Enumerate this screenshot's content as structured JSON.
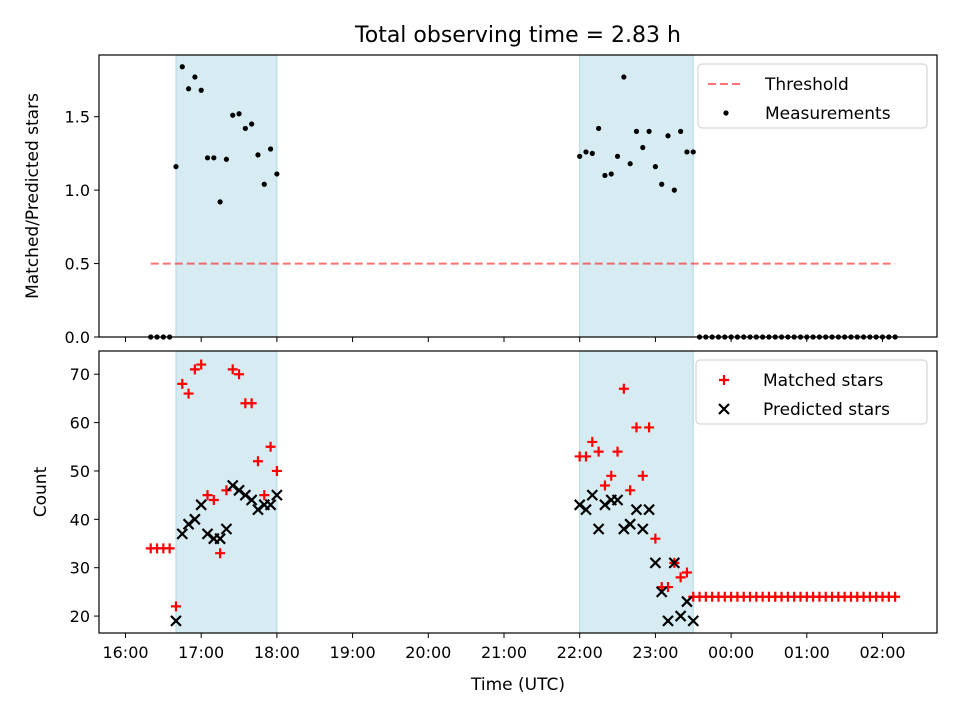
{
  "title": "Total observing time = 2.83 h",
  "xlabel": "Time (UTC)",
  "colors": {
    "shade": "#add8e6",
    "threshold": "#ff0000",
    "matched": "#ff0000",
    "predicted": "#000000",
    "measurement": "#000000"
  },
  "chart_data": [
    {
      "type": "scatter",
      "ylabel": "Matched/Predicted stars",
      "ylim": [
        0,
        1.92
      ],
      "xlim_hours": [
        15.65,
        26.72
      ],
      "yticks": [
        "0.0",
        "0.5",
        "1.0",
        "1.5"
      ],
      "yticks_values": [
        0,
        0.5,
        1.0,
        1.5
      ],
      "shaded_intervals": [
        [
          "16:40",
          "18:00"
        ],
        [
          "22:00",
          "23:30"
        ]
      ],
      "legend_position": "top-right",
      "legend": [
        "Threshold",
        "Measurements"
      ],
      "threshold": {
        "name": "Threshold",
        "y": 0.5,
        "x_start": "16:20",
        "x_end": "02:10"
      },
      "series": [
        {
          "name": "Measurements",
          "points": [
            [
              "16:20",
              0
            ],
            [
              "16:25",
              0
            ],
            [
              "16:30",
              0
            ],
            [
              "16:35",
              0
            ],
            [
              "16:40",
              1.16
            ],
            [
              "16:45",
              1.84
            ],
            [
              "16:50",
              1.69
            ],
            [
              "16:55",
              1.77
            ],
            [
              "17:00",
              1.68
            ],
            [
              "17:05",
              1.22
            ],
            [
              "17:10",
              1.22
            ],
            [
              "17:15",
              0.92
            ],
            [
              "17:20",
              1.21
            ],
            [
              "17:25",
              1.51
            ],
            [
              "17:30",
              1.52
            ],
            [
              "17:35",
              1.42
            ],
            [
              "17:40",
              1.45
            ],
            [
              "17:45",
              1.24
            ],
            [
              "17:50",
              1.04
            ],
            [
              "17:55",
              1.28
            ],
            [
              "18:00",
              1.11
            ],
            [
              "22:00",
              1.23
            ],
            [
              "22:05",
              1.26
            ],
            [
              "22:10",
              1.25
            ],
            [
              "22:15",
              1.42
            ],
            [
              "22:20",
              1.1
            ],
            [
              "22:25",
              1.11
            ],
            [
              "22:30",
              1.23
            ],
            [
              "22:35",
              1.77
            ],
            [
              "22:40",
              1.18
            ],
            [
              "22:45",
              1.4
            ],
            [
              "22:50",
              1.29
            ],
            [
              "22:55",
              1.4
            ],
            [
              "23:00",
              1.16
            ],
            [
              "23:05",
              1.04
            ],
            [
              "23:10",
              1.37
            ],
            [
              "23:15",
              1.0
            ],
            [
              "23:20",
              1.4
            ],
            [
              "23:25",
              1.26
            ],
            [
              "23:30",
              1.26
            ],
            [
              "23:35",
              0
            ],
            [
              "23:40",
              0
            ],
            [
              "23:45",
              0
            ],
            [
              "23:50",
              0
            ],
            [
              "23:55",
              0
            ],
            [
              "00:00",
              0
            ],
            [
              "00:05",
              0
            ],
            [
              "00:10",
              0
            ],
            [
              "00:15",
              0
            ],
            [
              "00:20",
              0
            ],
            [
              "00:25",
              0
            ],
            [
              "00:30",
              0
            ],
            [
              "00:35",
              0
            ],
            [
              "00:40",
              0
            ],
            [
              "00:45",
              0
            ],
            [
              "00:50",
              0
            ],
            [
              "00:55",
              0
            ],
            [
              "01:00",
              0
            ],
            [
              "01:05",
              0
            ],
            [
              "01:10",
              0
            ],
            [
              "01:15",
              0
            ],
            [
              "01:20",
              0
            ],
            [
              "01:25",
              0
            ],
            [
              "01:30",
              0
            ],
            [
              "01:35",
              0
            ],
            [
              "01:40",
              0
            ],
            [
              "01:45",
              0
            ],
            [
              "01:50",
              0
            ],
            [
              "01:55",
              0
            ],
            [
              "02:00",
              0
            ],
            [
              "02:05",
              0
            ],
            [
              "02:10",
              0
            ]
          ]
        }
      ]
    },
    {
      "type": "scatter",
      "ylabel": "Count",
      "xlabel": "Time (UTC)",
      "ylim": [
        16.5,
        74.8
      ],
      "xlim_hours": [
        15.65,
        26.72
      ],
      "yticks": [
        "20",
        "30",
        "40",
        "50",
        "60",
        "70"
      ],
      "yticks_values": [
        20,
        30,
        40,
        50,
        60,
        70
      ],
      "xticks": [
        "16:00",
        "17:00",
        "18:00",
        "19:00",
        "20:00",
        "21:00",
        "22:00",
        "23:00",
        "00:00",
        "01:00",
        "02:00"
      ],
      "xticks_hours": [
        16,
        17,
        18,
        19,
        20,
        21,
        22,
        23,
        24,
        25,
        26
      ],
      "shaded_intervals": [
        [
          "16:40",
          "18:00"
        ],
        [
          "22:00",
          "23:30"
        ]
      ],
      "legend_position": "top-right",
      "legend": [
        "Matched stars",
        "Predicted stars"
      ],
      "series": [
        {
          "name": "Matched stars",
          "points": [
            [
              "16:20",
              34
            ],
            [
              "16:25",
              34
            ],
            [
              "16:30",
              34
            ],
            [
              "16:35",
              34
            ],
            [
              "16:40",
              22
            ],
            [
              "16:45",
              68
            ],
            [
              "16:50",
              66
            ],
            [
              "16:55",
              71
            ],
            [
              "17:00",
              72
            ],
            [
              "17:05",
              45
            ],
            [
              "17:10",
              44
            ],
            [
              "17:15",
              33
            ],
            [
              "17:20",
              46
            ],
            [
              "17:25",
              71
            ],
            [
              "17:30",
              70
            ],
            [
              "17:35",
              64
            ],
            [
              "17:40",
              64
            ],
            [
              "17:45",
              52
            ],
            [
              "17:50",
              45
            ],
            [
              "17:55",
              55
            ],
            [
              "18:00",
              50
            ],
            [
              "22:00",
              53
            ],
            [
              "22:05",
              53
            ],
            [
              "22:10",
              56
            ],
            [
              "22:15",
              54
            ],
            [
              "22:20",
              47
            ],
            [
              "22:25",
              49
            ],
            [
              "22:30",
              54
            ],
            [
              "22:35",
              67
            ],
            [
              "22:40",
              46
            ],
            [
              "22:45",
              59
            ],
            [
              "22:50",
              49
            ],
            [
              "22:55",
              59
            ],
            [
              "23:00",
              36
            ],
            [
              "23:05",
              26
            ],
            [
              "23:10",
              26
            ],
            [
              "23:15",
              31
            ],
            [
              "23:20",
              28
            ],
            [
              "23:25",
              29
            ],
            [
              "23:30",
              24
            ],
            [
              "23:35",
              24
            ],
            [
              "23:40",
              24
            ],
            [
              "23:45",
              24
            ],
            [
              "23:50",
              24
            ],
            [
              "23:55",
              24
            ],
            [
              "00:00",
              24
            ],
            [
              "00:05",
              24
            ],
            [
              "00:10",
              24
            ],
            [
              "00:15",
              24
            ],
            [
              "00:20",
              24
            ],
            [
              "00:25",
              24
            ],
            [
              "00:30",
              24
            ],
            [
              "00:35",
              24
            ],
            [
              "00:40",
              24
            ],
            [
              "00:45",
              24
            ],
            [
              "00:50",
              24
            ],
            [
              "00:55",
              24
            ],
            [
              "01:00",
              24
            ],
            [
              "01:05",
              24
            ],
            [
              "01:10",
              24
            ],
            [
              "01:15",
              24
            ],
            [
              "01:20",
              24
            ],
            [
              "01:25",
              24
            ],
            [
              "01:30",
              24
            ],
            [
              "01:35",
              24
            ],
            [
              "01:40",
              24
            ],
            [
              "01:45",
              24
            ],
            [
              "01:50",
              24
            ],
            [
              "01:55",
              24
            ],
            [
              "02:00",
              24
            ],
            [
              "02:05",
              24
            ],
            [
              "02:10",
              24
            ]
          ]
        },
        {
          "name": "Predicted stars",
          "points": [
            [
              "16:40",
              19
            ],
            [
              "16:45",
              37
            ],
            [
              "16:50",
              39
            ],
            [
              "16:55",
              40
            ],
            [
              "17:00",
              43
            ],
            [
              "17:05",
              37
            ],
            [
              "17:10",
              36
            ],
            [
              "17:15",
              36
            ],
            [
              "17:20",
              38
            ],
            [
              "17:25",
              47
            ],
            [
              "17:30",
              46
            ],
            [
              "17:35",
              45
            ],
            [
              "17:40",
              44
            ],
            [
              "17:45",
              42
            ],
            [
              "17:50",
              43
            ],
            [
              "17:55",
              43
            ],
            [
              "18:00",
              45
            ],
            [
              "22:00",
              43
            ],
            [
              "22:05",
              42
            ],
            [
              "22:10",
              45
            ],
            [
              "22:15",
              38
            ],
            [
              "22:20",
              43
            ],
            [
              "22:25",
              44
            ],
            [
              "22:30",
              44
            ],
            [
              "22:35",
              38
            ],
            [
              "22:40",
              39
            ],
            [
              "22:45",
              42
            ],
            [
              "22:50",
              38
            ],
            [
              "22:55",
              42
            ],
            [
              "23:00",
              31
            ],
            [
              "23:05",
              25
            ],
            [
              "23:10",
              19
            ],
            [
              "23:15",
              31
            ],
            [
              "23:20",
              20
            ],
            [
              "23:25",
              23
            ],
            [
              "23:30",
              19
            ]
          ]
        }
      ]
    }
  ]
}
